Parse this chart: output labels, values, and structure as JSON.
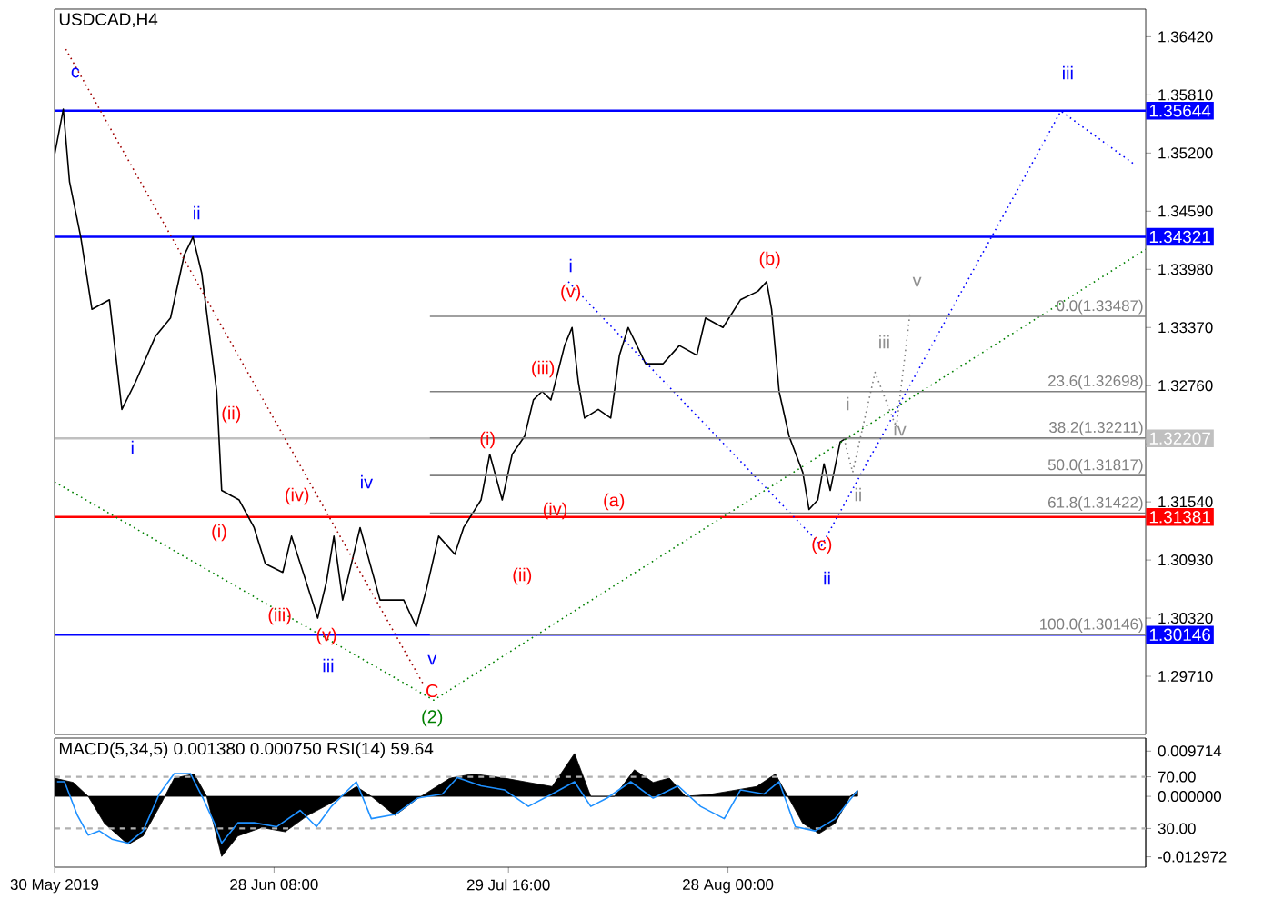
{
  "chart_data": [
    {
      "type": "line",
      "title": "USDCAD,H4",
      "xlim": [
        "2019-05-30T00:00",
        "2019-10-22T20:00"
      ],
      "ylim": [
        1.291,
        1.3671
      ],
      "tick_labels": "y",
      "yticks": [
        {
          "value": 1.3642,
          "label": "1.36420"
        },
        {
          "value": 1.3581,
          "label": "1.35810"
        },
        {
          "value": 1.352,
          "label": "1.35200"
        },
        {
          "value": 1.3459,
          "label": "1.34590"
        },
        {
          "value": 1.3398,
          "label": "1.33980"
        },
        {
          "value": 1.3337,
          "label": "1.33370"
        },
        {
          "value": 1.3276,
          "label": "1.32760"
        },
        {
          "value": 1.3215,
          "label": null
        },
        {
          "value": 1.3154,
          "label": "1.31540"
        },
        {
          "value": 1.3093,
          "label": "1.30930"
        },
        {
          "value": 1.3032,
          "label": "1.30320"
        },
        {
          "value": 1.2971,
          "label": "1.29710"
        }
      ],
      "series": [
        {
          "color": "#000000",
          "line_style": "solid",
          "x": [
            "2019-05-30T00:00",
            "2019-05-31T04:00",
            "2019-06-01T00:00",
            "2019-06-02T12:00",
            "2019-06-04T00:00",
            "2019-06-06T08:00",
            "2019-06-08T00:00",
            "2019-06-09T20:00",
            "2019-06-12T12:00",
            "2019-06-14T12:00",
            "2019-06-16T08:00",
            "2019-06-17T12:00",
            "2019-06-18T16:00",
            "2019-06-20T16:00",
            "2019-06-21T08:00",
            "2019-06-23T16:00",
            "2019-06-25T16:00",
            "2019-06-27T04:00",
            "2019-06-29T12:00",
            "2019-06-30T16:00",
            "2019-07-03T00:00",
            "2019-07-04T04:00",
            "2019-07-05T08:00",
            "2019-07-06T08:00",
            "2019-07-07T12:00",
            "2019-07-09T20:00",
            "2019-07-12T12:00",
            "2019-07-15T16:00",
            "2019-07-17T08:00",
            "2019-07-18T16:00",
            "2019-07-20T08:00",
            "2019-07-22T12:00",
            "2019-07-23T16:00",
            "2019-07-26T00:00",
            "2019-07-27T04:00",
            "2019-07-28T20:00",
            "2019-07-30T04:00",
            "2019-07-31T20:00",
            "2019-08-02T00:00",
            "2019-08-03T04:00",
            "2019-08-04T08:00",
            "2019-08-06T04:00",
            "2019-08-07T04:00",
            "2019-08-08T00:00",
            "2019-08-08T20:00",
            "2019-08-10T16:00",
            "2019-08-12T08:00",
            "2019-08-13T12:00",
            "2019-08-14T16:00",
            "2019-08-17T00:00",
            "2019-08-19T08:00",
            "2019-08-21T12:00",
            "2019-08-23T20:00",
            "2019-08-25T00:00",
            "2019-08-27T08:00",
            "2019-08-29T16:00",
            "2019-09-01T00:00",
            "2019-09-02T04:00",
            "2019-09-02T20:00",
            "2019-09-03T20:00",
            "2019-09-05T04:00",
            "2019-09-07T00:00",
            "2019-09-07T20:00",
            "2019-09-09T00:00",
            "2019-09-09T20:00",
            "2019-09-10T16:00",
            "2019-09-12T00:00",
            "2019-09-12T20:00"
          ],
          "values": [
            1.3518,
            1.3566,
            1.349,
            1.3432,
            1.3356,
            1.3366,
            1.3251,
            1.328,
            1.3328,
            1.3347,
            1.3413,
            1.3432,
            1.3394,
            1.327,
            1.3166,
            1.3156,
            1.3127,
            1.3089,
            1.308,
            1.3118,
            1.3061,
            1.3032,
            1.307,
            1.3118,
            1.3051,
            1.3127,
            1.3051,
            1.3051,
            1.3023,
            1.3061,
            1.3118,
            1.3099,
            1.3127,
            1.3156,
            1.3204,
            1.3156,
            1.3204,
            1.3223,
            1.3261,
            1.327,
            1.3261,
            1.3318,
            1.3337,
            1.328,
            1.3242,
            1.3251,
            1.3242,
            1.3308,
            1.3337,
            1.3299,
            1.3299,
            1.3318,
            1.3308,
            1.3347,
            1.3337,
            1.3366,
            1.3375,
            1.3385,
            1.3356,
            1.327,
            1.3223,
            1.3185,
            1.3146,
            1.3156,
            1.3194,
            1.3166,
            1.3217,
            1.3221
          ]
        },
        {
          "color": "#0000ff",
          "line_style": "dotted",
          "x": [
            "2019-08-06T16:00",
            "2019-09-09T12:00",
            "2019-10-11T12:00",
            "2019-10-21T04:00"
          ],
          "values": [
            1.3385,
            1.3108,
            1.3564,
            1.3509
          ]
        },
        {
          "color": "#808080",
          "line_style": "dotted",
          "x": [
            "2019-09-12T12:00",
            "2019-09-13T16:00",
            "2019-09-16T16:00",
            "2019-09-19T12:00",
            "2019-09-21T08:00"
          ],
          "values": [
            1.3221,
            1.3185,
            1.329,
            1.3232,
            1.3352
          ]
        },
        {
          "color": "#008000",
          "line_style": "dotted",
          "x": [
            "2019-05-30T00:00",
            "2019-07-19T16:00",
            "2019-10-22T20:00"
          ],
          "values": [
            1.3175,
            1.2946,
            1.3419
          ]
        },
        {
          "color": "#a00000",
          "line_style": "dotted",
          "x": [
            "2019-05-31T12:00",
            "2019-07-18T08:00"
          ],
          "values": [
            1.3629,
            1.2962
          ]
        },
        {
          "name": "0.0(1.33487)",
          "color": "#808080",
          "line_style": "solid",
          "x": [
            "2019-07-19T04:00",
            "2019-10-22T20:00"
          ],
          "values": [
            1.33487,
            1.33487
          ]
        },
        {
          "name": "23.6(1.32698)",
          "color": "#808080",
          "line_style": "solid",
          "x": [
            "2019-07-19T04:00",
            "2019-10-22T20:00"
          ],
          "values": [
            1.32698,
            1.32698
          ]
        },
        {
          "name": "38.2(1.32211)",
          "color": "#808080",
          "line_style": "solid",
          "x": [
            "2019-07-19T04:00",
            "2019-10-22T20:00"
          ],
          "values": [
            1.32211,
            1.32211
          ]
        },
        {
          "name": "50.0(1.31817)",
          "color": "#808080",
          "line_style": "solid",
          "x": [
            "2019-07-19T04:00",
            "2019-10-22T20:00"
          ],
          "values": [
            1.31817,
            1.31817
          ]
        },
        {
          "name": "61.8(1.31422)",
          "color": "#808080",
          "line_style": "solid",
          "x": [
            "2019-07-19T04:00",
            "2019-10-22T20:00"
          ],
          "values": [
            1.31422,
            1.31422
          ]
        },
        {
          "name": "100.0(1.30146)",
          "color": "#808080",
          "line_style": "solid",
          "x": [
            "2019-07-19T04:00",
            "2019-10-22T20:00"
          ],
          "values": [
            1.30146,
            1.30146
          ]
        }
      ],
      "ref_lines": [
        {
          "axis": "y",
          "value": 1.35644,
          "label": "1.35644",
          "color": "#0000ff"
        },
        {
          "axis": "y",
          "value": 1.34321,
          "label": "1.34321",
          "color": "#0000ff"
        },
        {
          "axis": "y",
          "value": 1.32207,
          "label": "1.32207",
          "color": "#c0c0c0"
        },
        {
          "axis": "y",
          "value": 1.31381,
          "label": "1.31381",
          "color": "#ff0000"
        },
        {
          "axis": "y",
          "value": 1.30146,
          "label": "1.30146",
          "color": "#0000ff"
        }
      ],
      "annotations": [
        "c",
        "ii",
        "i",
        "(ii)",
        "(i)",
        "(iv)",
        "(iii)",
        "(v)",
        "iii",
        "iv",
        "v",
        "C",
        "(2)",
        "(i)",
        "(ii)",
        "(iii)",
        "(iv)",
        "(v)",
        "i",
        "(a)",
        "(b)",
        "(c)",
        "ii",
        "iii",
        "i",
        "ii",
        "iii",
        "iv",
        "v"
      ]
    },
    {
      "type": "area",
      "title": "MACD(5,34,5) 0.001380 0.000750 RSI(14) 59.64",
      "xlim": [
        "2019-05-30T00:00",
        "2019-10-22T20:00"
      ],
      "ylim": [
        -0.0152,
        0.0125
      ],
      "y2lim": [
        0,
        100
      ],
      "xticks": [
        {
          "value": "2019-05-30T00:00",
          "label": "30 May 2019"
        },
        {
          "value": "2019-06-28T08:00",
          "label": "28 Jun 08:00"
        },
        {
          "value": "2019-07-29T16:00",
          "label": "29 Jul 16:00"
        },
        {
          "value": "2019-08-28T00:00",
          "label": "28 Aug 00:00"
        }
      ],
      "yticks": [
        {
          "value": 0.009714,
          "label": "0.009714"
        },
        {
          "value": 0,
          "label": "0.000000"
        },
        {
          "value": -0.012972,
          "label": "-0.012972"
        }
      ],
      "y2ticks": [
        {
          "value": 70,
          "label": "70.00"
        },
        {
          "value": 30,
          "label": "30.00"
        }
      ],
      "series": [
        {
          "type": "area",
          "color": "#000000",
          "x": [
            "2019-05-30T00:00",
            "2019-06-01T12:00",
            "2019-06-03T12:00",
            "2019-06-05T16:00",
            "2019-06-08T20:00",
            "2019-06-10T20:00",
            "2019-06-13T00:00",
            "2019-06-15T00:00",
            "2019-06-17T16:00",
            "2019-06-19T08:00",
            "2019-06-21T08:00",
            "2019-06-23T12:00",
            "2019-06-26T16:00",
            "2019-06-29T20:00",
            "2019-07-02T20:00",
            "2019-07-06T00:00",
            "2019-07-09T08:00",
            "2019-07-11T08:00",
            "2019-07-14T12:00",
            "2019-07-17T12:00",
            "2019-07-21T20:00",
            "2019-07-25T00:00",
            "2019-07-29T04:00",
            "2019-08-01T08:00",
            "2019-08-04T12:00",
            "2019-08-07T12:00",
            "2019-08-09T16:00",
            "2019-08-12T20:00",
            "2019-08-15T12:00",
            "2019-08-18T00:00",
            "2019-08-20T04:00",
            "2019-08-22T08:00",
            "2019-08-25T12:00",
            "2019-08-28T12:00",
            "2019-08-31T20:00",
            "2019-09-03T08:00",
            "2019-09-05T00:00",
            "2019-09-07T00:00",
            "2019-09-09T04:00",
            "2019-09-11T08:00",
            "2019-09-13T08:00",
            "2019-09-14T08:00"
          ],
          "values": [
            0.0039,
            0.003,
            0,
            -0.0058,
            -0.0103,
            -0.0085,
            -0.0023,
            0.0039,
            0.0048,
            0,
            -0.0129,
            -0.0085,
            -0.0067,
            -0.0076,
            -0.0041,
            -0.0014,
            0.0021,
            0,
            -0.0041,
            -0.0005,
            0.0039,
            0.0048,
            0.0039,
            0.003,
            0.0021,
            0.0092,
            0,
            0,
            0.0057,
            0.003,
            0.0039,
            0,
            0.0004,
            0.0012,
            0.0021,
            0.0048,
            0,
            -0.0058,
            -0.008,
            -0.0058,
            0,
            0.0012
          ]
        },
        {
          "type": "line",
          "axis": "y2",
          "color": "#1e90ff",
          "x": [
            "2019-05-30T08:00",
            "2019-05-31T08:00",
            "2019-06-02T00:00",
            "2019-06-03T12:00",
            "2019-06-05T00:00",
            "2019-06-06T16:00",
            "2019-06-08T20:00",
            "2019-06-10T20:00",
            "2019-06-13T00:00",
            "2019-06-15T00:00",
            "2019-06-17T04:00",
            "2019-06-18T20:00",
            "2019-06-20T08:00",
            "2019-06-21T08:00",
            "2019-06-23T12:00",
            "2019-06-25T16:00",
            "2019-06-28T16:00",
            "2019-07-01T20:00",
            "2019-07-04T00:00",
            "2019-07-06T00:00",
            "2019-07-09T08:00",
            "2019-07-11T08:00",
            "2019-07-14T12:00",
            "2019-07-17T12:00",
            "2019-07-20T20:00",
            "2019-07-22T20:00",
            "2019-07-26T00:00",
            "2019-07-29T04:00",
            "2019-08-01T08:00",
            "2019-08-04T12:00",
            "2019-08-07T12:00",
            "2019-08-09T16:00",
            "2019-08-11T20:00",
            "2019-08-15T00:00",
            "2019-08-18T00:00",
            "2019-08-21T08:00",
            "2019-08-24T08:00",
            "2019-08-27T12:00",
            "2019-08-29T16:00",
            "2019-09-01T20:00",
            "2019-09-03T20:00",
            "2019-09-06T00:00",
            "2019-09-08T16:00",
            "2019-09-11T08:00",
            "2019-09-14T08:00"
          ],
          "values": [
            66.2,
            66.2,
            40.8,
            24.9,
            28.1,
            21.7,
            18.6,
            28.1,
            56.7,
            72.5,
            72.5,
            53.5,
            34.4,
            18.6,
            34.4,
            34.4,
            31.3,
            44,
            31.3,
            47.1,
            66.2,
            37.6,
            40.8,
            53.5,
            56.7,
            69.4,
            63,
            59.8,
            47.1,
            56.7,
            66.2,
            47.1,
            53.5,
            66.2,
            53.5,
            63,
            47.1,
            37.6,
            59.8,
            56.7,
            66.2,
            31.3,
            28.1,
            37.6,
            59.6
          ]
        }
      ],
      "ref_lines": [
        {
          "axis": "y2",
          "value": 70,
          "color": "#b0b0b0",
          "line_style": "dashed"
        },
        {
          "axis": "y2",
          "value": 30,
          "color": "#b0b0b0",
          "line_style": "dashed"
        }
      ]
    }
  ]
}
